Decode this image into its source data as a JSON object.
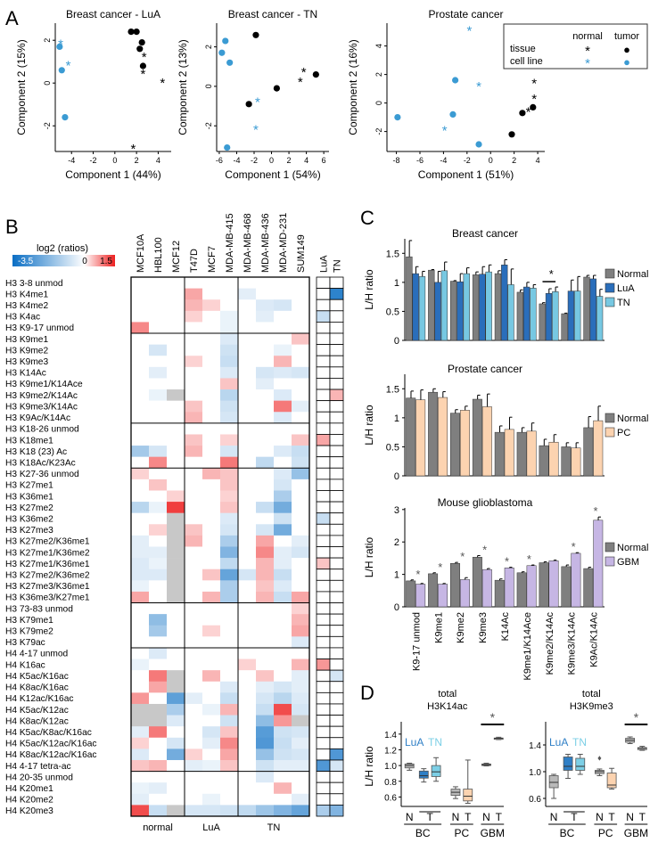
{
  "panels": {
    "A": "A",
    "B": "B",
    "C": "C",
    "D": "D"
  },
  "chart_data": {
    "pca": {
      "type": "scatter",
      "plots": [
        {
          "title": "Breast cancer - LuA",
          "xlabel": "Component 1 (44%)",
          "ylabel": "Component 2 (15%)",
          "xlim": [
            -5.5,
            5.2
          ],
          "ylim": [
            -3.2,
            2.8
          ],
          "xticks": [
            -4,
            -2,
            0,
            2,
            4
          ],
          "yticks": [
            -2,
            0,
            2
          ],
          "points": [
            {
              "x": -5.0,
              "y": 1.9,
              "g": "ct"
            },
            {
              "x": -5.1,
              "y": 1.7,
              "g": "cl"
            },
            {
              "x": -4.3,
              "y": 0.9,
              "g": "ct"
            },
            {
              "x": -4.9,
              "y": 0.6,
              "g": "cl"
            },
            {
              "x": -4.6,
              "y": -1.6,
              "g": "cl"
            },
            {
              "x": 1.5,
              "y": 2.4,
              "g": "tu"
            },
            {
              "x": 2.0,
              "y": 2.4,
              "g": "tu"
            },
            {
              "x": 2.5,
              "y": 1.9,
              "g": "tu"
            },
            {
              "x": 2.3,
              "y": 1.6,
              "g": "tu"
            },
            {
              "x": 2.7,
              "y": 1.3,
              "g": "ti"
            },
            {
              "x": 2.6,
              "y": 0.8,
              "g": "tu"
            },
            {
              "x": 2.6,
              "y": 0.5,
              "g": "ti"
            },
            {
              "x": 4.4,
              "y": 0.1,
              "g": "ti"
            },
            {
              "x": 1.7,
              "y": -3.0,
              "g": "ti"
            }
          ]
        },
        {
          "title": "Breast cancer - TN",
          "xlabel": "Component 1 (54%)",
          "ylabel": "Component 2 (13%)",
          "xlim": [
            -6.3,
            6.6
          ],
          "ylim": [
            -3.3,
            3.2
          ],
          "xticks": [
            -6,
            -4,
            -2,
            0,
            2,
            4,
            6
          ],
          "yticks": [
            -2,
            0,
            2
          ],
          "points": [
            {
              "x": -5.3,
              "y": 2.3,
              "g": "cl"
            },
            {
              "x": -5.7,
              "y": 1.7,
              "g": "cl"
            },
            {
              "x": -4.8,
              "y": 1.2,
              "g": "cl"
            },
            {
              "x": -5.1,
              "y": -3.1,
              "g": "cl"
            },
            {
              "x": -1.6,
              "y": -0.7,
              "g": "ct"
            },
            {
              "x": -1.8,
              "y": -2.1,
              "g": "ct"
            },
            {
              "x": -1.8,
              "y": 2.6,
              "g": "tu"
            },
            {
              "x": -2.6,
              "y": -0.9,
              "g": "tu"
            },
            {
              "x": 0.6,
              "y": -0.1,
              "g": "tu"
            },
            {
              "x": 5.1,
              "y": 0.6,
              "g": "tu"
            },
            {
              "x": 3.7,
              "y": 0.8,
              "g": "ti"
            },
            {
              "x": 3.3,
              "y": 0.3,
              "g": "ti"
            }
          ]
        },
        {
          "title": "Prostate cancer",
          "xlabel": "Component 1 (51%)",
          "ylabel": "Component 2 (16%)",
          "xlim": [
            -8.8,
            4.6
          ],
          "ylim": [
            -3.4,
            5.6
          ],
          "xticks": [
            -8,
            -6,
            -4,
            -2,
            0,
            2,
            4
          ],
          "yticks": [
            -2,
            0,
            2,
            4
          ],
          "points": [
            {
              "x": -1.8,
              "y": 5.2,
              "g": "ct"
            },
            {
              "x": -3.0,
              "y": 1.6,
              "g": "cl"
            },
            {
              "x": -1.0,
              "y": 1.3,
              "g": "ct"
            },
            {
              "x": -7.9,
              "y": -1.0,
              "g": "cl"
            },
            {
              "x": -3.2,
              "y": -0.8,
              "g": "cl"
            },
            {
              "x": -3.9,
              "y": -1.8,
              "g": "ct"
            },
            {
              "x": -1.0,
              "y": -2.9,
              "g": "cl"
            },
            {
              "x": 3.7,
              "y": 1.5,
              "g": "ti"
            },
            {
              "x": 3.7,
              "y": 0.4,
              "g": "ti"
            },
            {
              "x": 3.6,
              "y": -0.3,
              "g": "tu"
            },
            {
              "x": 3.2,
              "y": -0.5,
              "g": "ti"
            },
            {
              "x": 2.7,
              "y": -0.7,
              "g": "tu"
            },
            {
              "x": 1.8,
              "y": -2.2,
              "g": "tu"
            }
          ]
        }
      ],
      "legend": {
        "col_normal": "normal",
        "col_tumor": "tumor",
        "row_tissue": "tissue",
        "row_cell_line": "cell line",
        "marker_star": "*",
        "marker_dot": "●"
      },
      "colors": {
        "tissue": "#000000",
        "cell_line": "#3b9bd3"
      }
    },
    "heatmap": {
      "type": "heatmap",
      "title": "log2 (ratios)",
      "scale": {
        "min": -3.5,
        "mid": 0,
        "max": 1.5,
        "min_label": "-3.5",
        "mid_label": "0",
        "max_label": "1.5"
      },
      "colors": {
        "low": "#0a6ec4",
        "mid": "#ffffff",
        "high": "#ee2020",
        "na": "#c8c8c8"
      },
      "columns": [
        "MCF10A",
        "HBL100",
        "MCF12",
        "T47D",
        "MCF7",
        "MDA-MB-415",
        "MDA-MB-468",
        "MDA-MB-436",
        "MDA-MD-231",
        "SUM149"
      ],
      "groups": [
        {
          "label": "normal",
          "span": 3
        },
        {
          "label": "LuA",
          "span": 3
        },
        {
          "label": "TN",
          "span": 4
        }
      ],
      "side_columns": [
        "LuA",
        "TN"
      ],
      "rows": [
        "H3 3-8 unmod",
        "H3 K4me1",
        "H3 K4me2",
        "H3 K4ac",
        "H3 K9-17 unmod",
        "H3 K9me1",
        "H3 K9me2",
        "H3 K9me3",
        "H3 K14Ac",
        "H3 K9me1/K14Ace",
        "H3 K9me2/K14Ac",
        "H3 K9me3/K14Ac",
        "H3 K9Ac/K14Ac",
        "H3 K18-26 unmod",
        "H3 K18me1",
        "H3 K18 (23) Ac",
        "H3 K18Ac/K23Ac",
        "H3 K27-36 unmod",
        "H3 K27me1",
        "H3 K36me1",
        "H3 K27me2",
        "H3 K36me2",
        "H3 K27me3",
        "H3 K27me2/K36me1",
        "H3 K27me1/K36me2",
        "H3 K27me1/K36me1",
        "H3 K27me2/K36me2",
        "H3 K27me3/K36me1",
        "H3 K36me3/K27me1",
        "H3 73-83 unmod",
        "H3 K79me1",
        "H3 K79me2",
        "H3 K79ac",
        "H4 4-17 unmod",
        "H4 K16ac",
        "H4 K5ac/K16ac",
        "H4 K8ac/K16ac",
        "H4 K12ac/K16ac",
        "H4 K5ac/K12ac",
        "H4 K8ac/K12ac",
        "H4 K5ac/K8ac/K16ac",
        "H4 K5ac/K12ac/K16ac",
        "H4 K8ac/K12ac/K16ac",
        "H4 4-17 tetra-ac",
        "H4 20-35 unmod",
        "H4 K20me1",
        "H4 K20me2",
        "H4 K20me3"
      ],
      "row_separators_after": [
        4,
        12,
        16,
        28,
        32,
        43
      ],
      "side_values": {
        "LuA": {
          "3": -0.8,
          "14": 0.6,
          "21": -0.8,
          "25": 0.4,
          "34": 0.7,
          "43": -2.5,
          "47": -1.2
        },
        "TN": {
          "1": -3.0,
          "10": 0.5,
          "35": -0.6,
          "42": -2.5,
          "43": -0.6,
          "47": -1.8
        }
      }
    },
    "breast_bar": {
      "type": "bar",
      "title": "Breast cancer",
      "ylabel": "L/H ratio",
      "ylim": [
        0,
        1.75
      ],
      "yticks": [
        0,
        0.5,
        1,
        1.5
      ],
      "ytick_labels": [
        "0",
        "0.5",
        "1",
        "1.5"
      ],
      "series": [
        {
          "name": "Normal",
          "color": "#7f7f7f",
          "values": [
            1.44,
            1.21,
            1.02,
            1.13,
            1.15,
            0.83,
            0.63,
            0.46,
            1.09
          ],
          "err": [
            0.28,
            0.01,
            0.01,
            0.05,
            0.05,
            0.04,
            0.02,
            0.01,
            0.03
          ]
        },
        {
          "name": "LuA",
          "color": "#2a6ebb",
          "values": [
            1.15,
            1.0,
            1.01,
            1.14,
            1.3,
            0.92,
            0.81,
            0.85,
            1.06
          ],
          "err": [
            0.12,
            0.19,
            0.14,
            0.13,
            0.09,
            0.08,
            0.08,
            0.19,
            0.06
          ]
        },
        {
          "name": "TN",
          "color": "#77c8e2",
          "values": [
            1.1,
            1.2,
            1.15,
            1.18,
            0.96,
            0.9,
            0.84,
            0.85,
            0.76
          ],
          "err": [
            0.09,
            0.15,
            0.1,
            0.12,
            0.27,
            0.06,
            0.08,
            0.25,
            0.12
          ]
        }
      ],
      "significance": [
        {
          "index": 6,
          "label": "*"
        }
      ]
    },
    "prostate_bar": {
      "type": "bar",
      "title": "Prostate cancer",
      "ylabel": "L/H ratio",
      "ylim": [
        0,
        1.75
      ],
      "yticks": [
        0,
        0.5,
        1,
        1.5
      ],
      "ytick_labels": [
        "0",
        "0.5",
        "1",
        "1.5"
      ],
      "series": [
        {
          "name": "Normal",
          "color": "#7f7f7f",
          "values": [
            1.34,
            1.44,
            1.08,
            1.32,
            0.75,
            0.75,
            0.52,
            0.5,
            0.83
          ],
          "err": [
            0.12,
            0.06,
            0.06,
            0.07,
            0.11,
            0.08,
            0.11,
            0.07,
            0.19
          ]
        },
        {
          "name": "PC",
          "color": "#fcd3b0",
          "values": [
            1.31,
            1.35,
            1.13,
            1.19,
            0.8,
            0.77,
            0.58,
            0.48,
            0.95
          ],
          "err": [
            0.17,
            0.1,
            0.07,
            0.22,
            0.21,
            0.14,
            0.13,
            0.09,
            0.25
          ]
        }
      ]
    },
    "glioblastoma_bar": {
      "type": "bar",
      "title": "Mouse glioblastoma",
      "ylabel": "L/H ratio",
      "ylim": [
        0,
        3.05
      ],
      "yticks": [
        0,
        1,
        2,
        3
      ],
      "ytick_labels": [
        "0",
        "1",
        "2",
        "3"
      ],
      "categories": [
        "K9-17 unmod",
        "K9me1",
        "K9me2",
        "K9me3",
        "K14Ac",
        "K9me1/K14Ace",
        "K9me2/K14Ac",
        "K9me3/K14Ac",
        "K9Ac/K14Ac"
      ],
      "series": [
        {
          "name": "Normal",
          "color": "#7f7f7f",
          "values": [
            0.8,
            1.02,
            1.34,
            1.53,
            0.82,
            1.05,
            1.36,
            1.24,
            1.18
          ],
          "err": [
            0.03,
            0.03,
            0.03,
            0.05,
            0.04,
            0.03,
            0.03,
            0.05,
            0.04
          ]
        },
        {
          "name": "GBM",
          "color": "#c6b6e4",
          "values": [
            0.7,
            0.7,
            0.84,
            1.15,
            1.2,
            1.27,
            1.42,
            1.65,
            2.67
          ],
          "err": [
            0.02,
            0.02,
            0.06,
            0.03,
            0.02,
            0.02,
            0.02,
            0.02,
            0.1
          ]
        }
      ],
      "significance": [
        {
          "index": 0,
          "label": "*"
        },
        {
          "index": 1,
          "label": "*"
        },
        {
          "index": 2,
          "label": "*"
        },
        {
          "index": 3,
          "label": "*"
        },
        {
          "index": 4,
          "label": "*"
        },
        {
          "index": 5,
          "label": "*"
        },
        {
          "index": 7,
          "label": "*"
        },
        {
          "index": 8,
          "label": "*"
        }
      ]
    },
    "boxplots": {
      "type": "box",
      "ylabel": "L/H ratio",
      "category_labels": [
        "N",
        "T",
        "N",
        "T",
        "N",
        "T"
      ],
      "group_labels": [
        "BC",
        "PC",
        "GBM"
      ],
      "legend": {
        "lua": "LuA",
        "tn": "TN"
      },
      "colors": {
        "normal": "#b9b9b9",
        "lua": "#2f7fc6",
        "tn": "#7ccfe6",
        "pc": "#fcd3b0",
        "gbm": "#dcdcdc"
      },
      "plots": [
        {
          "title1": "total",
          "title2": "H3K14ac",
          "ylim": [
            0.48,
            1.5
          ],
          "yticks": [
            0.6,
            0.8,
            1.0,
            1.2,
            1.4
          ],
          "ytick_labels": [
            "0.6",
            "0.8",
            "1.0",
            "1.2",
            "1.4"
          ],
          "boxes": [
            {
              "group": "BC-N",
              "min": 0.94,
              "q1": 0.97,
              "med": 1.0,
              "q3": 1.02,
              "max": 1.03
            },
            {
              "group": "BC-LuA",
              "min": 0.79,
              "q1": 0.84,
              "med": 0.87,
              "q3": 0.93,
              "max": 0.96
            },
            {
              "group": "BC-TN",
              "min": 0.8,
              "q1": 0.86,
              "med": 0.92,
              "q3": 1.0,
              "max": 1.1
            },
            {
              "group": "PC-N",
              "min": 0.58,
              "q1": 0.62,
              "med": 0.66,
              "q3": 0.7,
              "max": 0.73
            },
            {
              "group": "PC-T",
              "min": 0.52,
              "q1": 0.55,
              "med": 0.61,
              "q3": 0.7,
              "max": 1.07
            },
            {
              "group": "GBM-N",
              "min": 0.995,
              "q1": 1.0,
              "med": 1.01,
              "q3": 1.02,
              "max": 1.03
            },
            {
              "group": "GBM-T",
              "min": 1.33,
              "q1": 1.34,
              "med": 1.345,
              "q3": 1.35,
              "max": 1.36
            }
          ],
          "significance": "*"
        },
        {
          "title1": "total",
          "title2": "H3K9me3",
          "ylim": [
            0.48,
            1.68
          ],
          "yticks": [
            0.6,
            1.0,
            1.4
          ],
          "ytick_labels": [
            "0.6",
            "1.0",
            "1.4"
          ],
          "boxes": [
            {
              "group": "BC-N",
              "min": 0.6,
              "q1": 0.76,
              "med": 0.84,
              "q3": 0.94,
              "max": 0.96
            },
            {
              "group": "BC-LuA",
              "min": 0.9,
              "q1": 1.02,
              "med": 1.08,
              "q3": 1.22,
              "max": 1.26
            },
            {
              "group": "BC-TN",
              "min": 0.96,
              "q1": 1.02,
              "med": 1.08,
              "q3": 1.2,
              "max": 1.26
            },
            {
              "group": "PC-N",
              "min": 0.94,
              "q1": 0.97,
              "med": 1.0,
              "q3": 1.02,
              "max": 1.04
            },
            {
              "group": "PC-T",
              "min": 0.74,
              "q1": 0.76,
              "med": 0.8,
              "q3": 0.98,
              "max": 1.05
            },
            {
              "group": "GBM-N",
              "min": 1.42,
              "q1": 1.44,
              "med": 1.47,
              "q3": 1.5,
              "max": 1.52
            },
            {
              "group": "GBM-T",
              "min": 1.32,
              "q1": 1.33,
              "med": 1.35,
              "q3": 1.36,
              "max": 1.38
            }
          ],
          "outliers": [
            {
              "group": "PC-N",
              "value": 1.22
            }
          ],
          "significance": "*"
        }
      ]
    }
  }
}
